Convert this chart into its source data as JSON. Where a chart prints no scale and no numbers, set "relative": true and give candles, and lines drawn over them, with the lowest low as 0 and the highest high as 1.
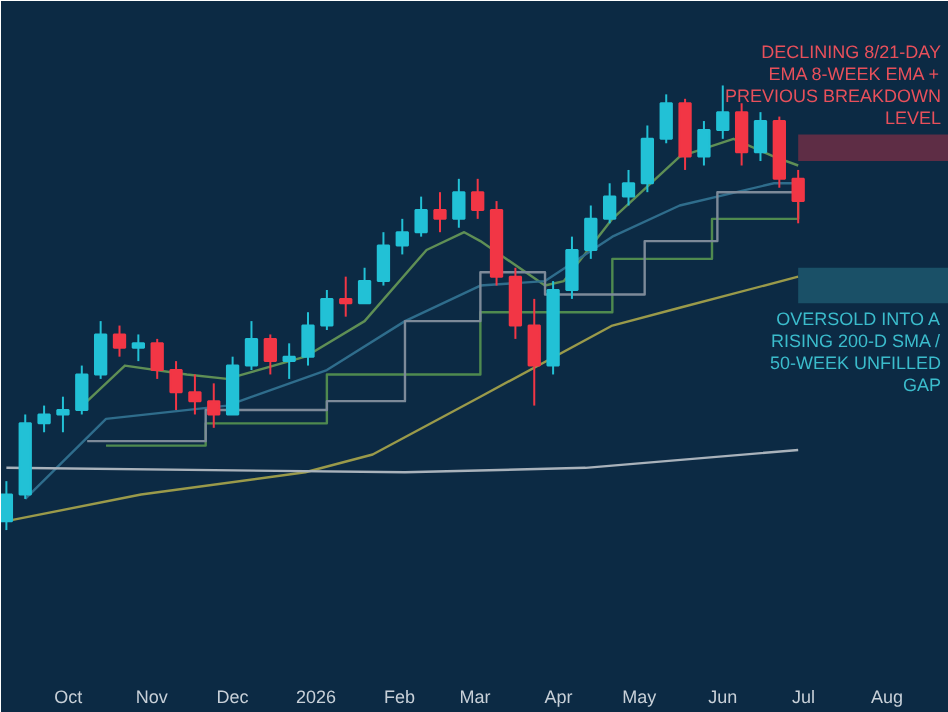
{
  "chart_data": {
    "type": "candlestick",
    "relative": true,
    "x": [
      "2025-09-08",
      "2025-09-15",
      "2025-09-22",
      "2025-09-29",
      "2025-10-06",
      "2025-10-13",
      "2025-10-20",
      "2025-10-27",
      "2025-11-03",
      "2025-11-10",
      "2025-11-17",
      "2025-11-24",
      "2025-12-01",
      "2025-12-08",
      "2025-12-15",
      "2025-12-22",
      "2025-12-29",
      "2026-01-05",
      "2026-01-12",
      "2026-01-19",
      "2026-01-26",
      "2026-02-02",
      "2026-02-09",
      "2026-02-16",
      "2026-02-23",
      "2026-03-02",
      "2026-03-09",
      "2026-03-16",
      "2026-03-23",
      "2026-03-30",
      "2026-04-06",
      "2026-04-13",
      "2026-04-20",
      "2026-04-27",
      "2026-05-04",
      "2026-05-11",
      "2026-05-18",
      "2026-05-25",
      "2026-06-01",
      "2026-06-08",
      "2026-06-15",
      "2026-06-22",
      "2026-06-29"
    ],
    "ohlc": [
      [
        0.02,
        0.11,
        0,
        0.08
      ],
      [
        0.08,
        0.26,
        0.07,
        0.24
      ],
      [
        0.24,
        0.28,
        0.22,
        0.26
      ],
      [
        0.26,
        0.3,
        0.22,
        0.27
      ],
      [
        0.27,
        0.37,
        0.26,
        0.35
      ],
      [
        0.35,
        0.47,
        0.34,
        0.44
      ],
      [
        0.44,
        0.46,
        0.39,
        0.41
      ],
      [
        0.41,
        0.44,
        0.38,
        0.42
      ],
      [
        0.42,
        0.43,
        0.34,
        0.36
      ],
      [
        0.36,
        0.38,
        0.27,
        0.31
      ],
      [
        0.31,
        0.35,
        0.26,
        0.29
      ],
      [
        0.29,
        0.33,
        0.23,
        0.26
      ],
      [
        0.26,
        0.39,
        0.26,
        0.37
      ],
      [
        0.37,
        0.47,
        0.36,
        0.43
      ],
      [
        0.43,
        0.44,
        0.35,
        0.38
      ],
      [
        0.38,
        0.42,
        0.34,
        0.39
      ],
      [
        0.39,
        0.49,
        0.37,
        0.46
      ],
      [
        0.46,
        0.54,
        0.45,
        0.52
      ],
      [
        0.52,
        0.57,
        0.48,
        0.51
      ],
      [
        0.51,
        0.59,
        0.51,
        0.56
      ],
      [
        0.56,
        0.67,
        0.55,
        0.64
      ],
      [
        0.64,
        0.7,
        0.62,
        0.67
      ],
      [
        0.67,
        0.75,
        0.66,
        0.72
      ],
      [
        0.72,
        0.76,
        0.67,
        0.7
      ],
      [
        0.7,
        0.79,
        0.68,
        0.76
      ],
      [
        0.76,
        0.79,
        0.7,
        0.72
      ],
      [
        0.72,
        0.74,
        0.55,
        0.57
      ],
      [
        0.57,
        0.59,
        0.43,
        0.46
      ],
      [
        0.46,
        0.52,
        0.28,
        0.37
      ],
      [
        0.37,
        0.56,
        0.35,
        0.54
      ],
      [
        0.54,
        0.66,
        0.52,
        0.63
      ],
      [
        0.63,
        0.73,
        0.61,
        0.7
      ],
      [
        0.7,
        0.78,
        0.69,
        0.75
      ],
      [
        0.75,
        0.81,
        0.73,
        0.78
      ],
      [
        0.78,
        0.91,
        0.76,
        0.88
      ],
      [
        0.88,
        0.98,
        0.87,
        0.96
      ],
      [
        0.96,
        0.97,
        0.81,
        0.84
      ],
      [
        0.84,
        0.92,
        0.82,
        0.9
      ],
      [
        0.9,
        1.0,
        0.88,
        0.94
      ],
      [
        0.94,
        0.96,
        0.82,
        0.85
      ],
      [
        0.85,
        0.94,
        0.83,
        0.92
      ],
      [
        0.92,
        0.93,
        0.77,
        0.79
      ],
      [
        0.79,
        0.81,
        0.69,
        0.74
      ]
    ],
    "colors": [
      "#22c1d6",
      "#22c1d6",
      "#22c1d6",
      "#22c1d6",
      "#22c1d6",
      "#22c1d6",
      "#f23645",
      "#22c1d6",
      "#f23645",
      "#f23645",
      "#f23645",
      "#f23645",
      "#22c1d6",
      "#22c1d6",
      "#f23645",
      "#22c1d6",
      "#22c1d6",
      "#22c1d6",
      "#f23645",
      "#22c1d6",
      "#22c1d6",
      "#22c1d6",
      "#22c1d6",
      "#f23645",
      "#22c1d6",
      "#f23645",
      "#f23645",
      "#f23645",
      "#f23645",
      "#22c1d6",
      "#22c1d6",
      "#22c1d6",
      "#22c1d6",
      "#22c1d6",
      "#22c1d6",
      "#22c1d6",
      "#f23645",
      "#22c1d6",
      "#22c1d6",
      "#f23645",
      "#22c1d6",
      "#f23645",
      "#f23645"
    ],
    "series": [
      {
        "type": "line",
        "color": "#5f8f55",
        "x": [
          "2025-10-08",
          "2025-10-22",
          "2025-11-14",
          "2025-11-29",
          "2025-12-28",
          "2026-01-19",
          "2026-02-11",
          "2026-02-25",
          "2026-03-03",
          "2026-03-27",
          "2026-04-03",
          "2026-04-21",
          "2026-05-16",
          "2026-06-05",
          "2026-06-20",
          "2026-06-29"
        ],
        "values": [
          0.29,
          0.37,
          0.35,
          0.34,
          0.39,
          0.47,
          0.63,
          0.67,
          0.65,
          0.55,
          0.56,
          0.7,
          0.84,
          0.88,
          0.84,
          0.82
        ]
      },
      {
        "type": "line",
        "color": "#2f6d8c",
        "x": [
          "2025-09-15",
          "2025-10-15",
          "2025-11-29",
          "2026-01-05",
          "2026-02-03",
          "2026-03-03",
          "2026-03-27",
          "2026-04-21",
          "2026-05-16",
          "2026-06-20",
          "2026-06-29"
        ],
        "values": [
          0.07,
          0.25,
          0.28,
          0.36,
          0.47,
          0.55,
          0.56,
          0.66,
          0.73,
          0.78,
          0.78
        ]
      },
      {
        "type": "line",
        "color": "#9a9a4a",
        "x": [
          "2025-09-08",
          "2025-10-28",
          "2025-12-28",
          "2026-01-22",
          "2026-03-03",
          "2026-04-21",
          "2026-05-16",
          "2026-06-29"
        ],
        "values": [
          0.02,
          0.08,
          0.13,
          0.17,
          0.3,
          0.46,
          0.5,
          0.57
        ]
      },
      {
        "type": "step",
        "color": "#4f8a4f",
        "x": [
          "2025-10-15",
          "2025-11-21",
          "2026-01-05",
          "2026-03-03",
          "2026-04-21",
          "2026-05-28",
          "2026-06-29"
        ],
        "values": [
          0.19,
          0.24,
          0.35,
          0.49,
          0.61,
          0.7,
          0.75
        ]
      },
      {
        "type": "step",
        "color": "#7d8a99",
        "x": [
          "2025-10-08",
          "2025-11-21",
          "2026-01-05",
          "2026-02-03",
          "2026-03-03",
          "2026-03-27",
          "2026-05-03",
          "2026-05-30",
          "2026-06-29"
        ],
        "values": [
          0.2,
          0.27,
          0.29,
          0.47,
          0.58,
          0.53,
          0.65,
          0.76,
          0.78
        ]
      },
      {
        "type": "line",
        "color": "#a9b2bb",
        "x": [
          "2025-09-08",
          "2026-02-03",
          "2026-04-11",
          "2026-06-29"
        ],
        "values": [
          0.14,
          0.13,
          0.14,
          0.18
        ]
      }
    ],
    "bands": [
      {
        "axis": "y",
        "from": 0.83,
        "to": 0.89,
        "color": "#7a2f45",
        "label": "DECLINING 8/21-DAY EMA 8-WEEK EMA + PREVIOUS BREAKDOWN LEVEL"
      },
      {
        "axis": "y",
        "from": 0.51,
        "to": 0.59,
        "color": "#1f5e73",
        "label": "OVERSOLD INTO A RISING 200-D SMA / 50-WEEK UNFILLED GAP"
      }
    ],
    "xlim": [
      "2025-09-06",
      "2026-08-24"
    ],
    "xticks": [
      {
        "value": "2025-10-01",
        "label": "Oct"
      },
      {
        "value": "2025-11-01",
        "label": "Nov"
      },
      {
        "value": "2025-12-01",
        "label": "Dec"
      },
      {
        "value": "2026-01-01",
        "label": "2026"
      },
      {
        "value": "2026-02-01",
        "label": "Feb"
      },
      {
        "value": "2026-03-01",
        "label": "Mar"
      },
      {
        "value": "2026-04-01",
        "label": "Apr"
      },
      {
        "value": "2026-05-01",
        "label": "May"
      },
      {
        "value": "2026-06-01",
        "label": "Jun"
      },
      {
        "value": "2026-07-01",
        "label": "Jul"
      },
      {
        "value": "2026-08-01",
        "label": "Aug"
      }
    ]
  }
}
